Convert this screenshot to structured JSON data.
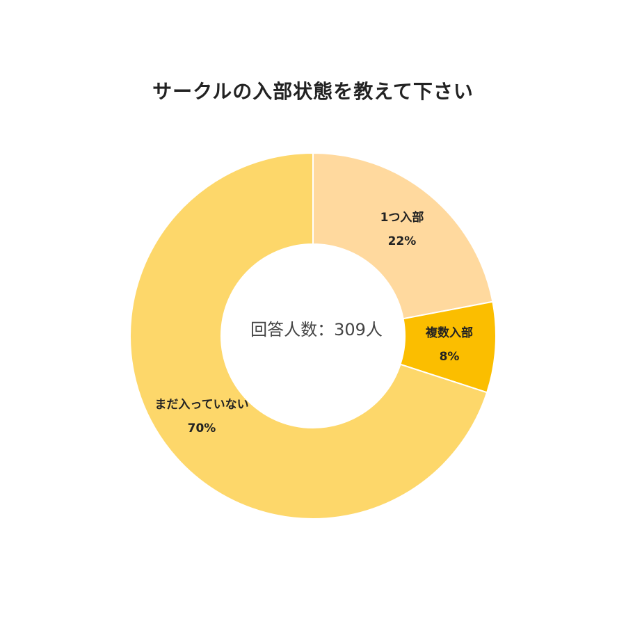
{
  "chart_data": {
    "type": "pie",
    "title": "サークルの入部状態を教えて下さい",
    "center_label": "回答人数：309人",
    "slices": [
      {
        "label": "1つ入部",
        "value": 22,
        "value_label": "22%",
        "color": "#FFD99E"
      },
      {
        "label": "複数入部",
        "value": 8,
        "value_label": "8%",
        "color": "#FBBE00"
      },
      {
        "label": "まだ入っていない",
        "value": 70,
        "value_label": "70%",
        "color": "#FDD76A"
      }
    ]
  }
}
